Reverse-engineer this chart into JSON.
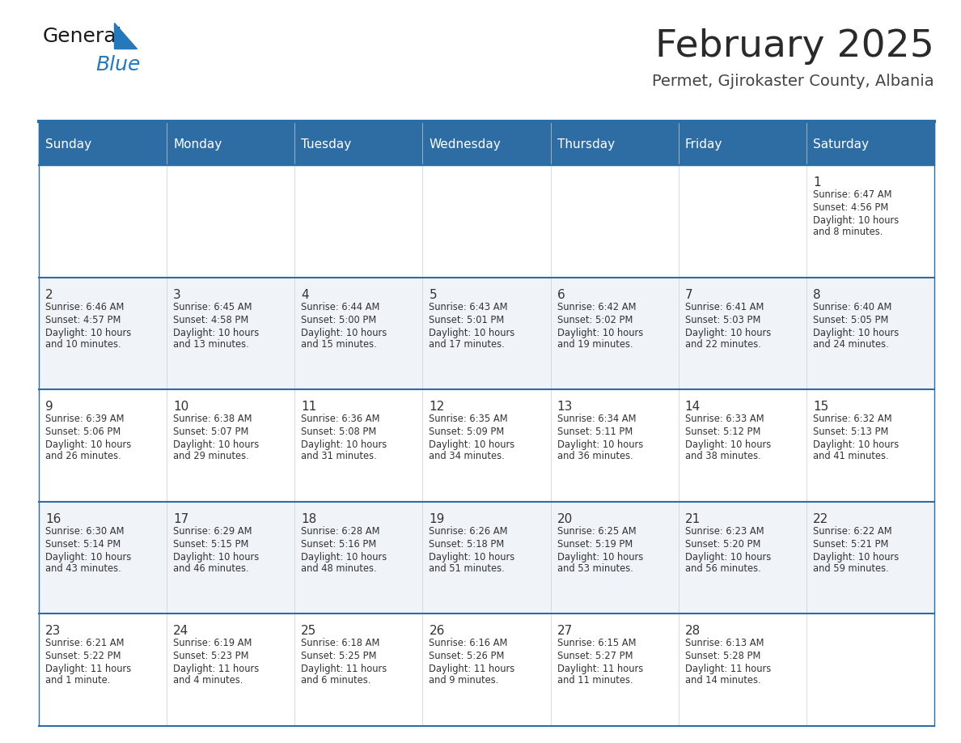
{
  "title": "February 2025",
  "subtitle": "Permet, Gjirokaster County, Albania",
  "header_bg_color": "#2E6DA4",
  "header_text_color": "#FFFFFF",
  "cell_bg_even": "#FFFFFF",
  "cell_bg_odd": "#F0F4F8",
  "border_color": "#2E6DA4",
  "text_color": "#333333",
  "day_headers": [
    "Sunday",
    "Monday",
    "Tuesday",
    "Wednesday",
    "Thursday",
    "Friday",
    "Saturday"
  ],
  "logo_color1": "#1a1a1a",
  "logo_color2": "#2479BD",
  "calendar_data": [
    [
      null,
      null,
      null,
      null,
      null,
      null,
      {
        "day": 1,
        "sunrise": "6:47 AM",
        "sunset": "4:56 PM",
        "daylight": "10 hours\nand 8 minutes."
      }
    ],
    [
      {
        "day": 2,
        "sunrise": "6:46 AM",
        "sunset": "4:57 PM",
        "daylight": "10 hours\nand 10 minutes."
      },
      {
        "day": 3,
        "sunrise": "6:45 AM",
        "sunset": "4:58 PM",
        "daylight": "10 hours\nand 13 minutes."
      },
      {
        "day": 4,
        "sunrise": "6:44 AM",
        "sunset": "5:00 PM",
        "daylight": "10 hours\nand 15 minutes."
      },
      {
        "day": 5,
        "sunrise": "6:43 AM",
        "sunset": "5:01 PM",
        "daylight": "10 hours\nand 17 minutes."
      },
      {
        "day": 6,
        "sunrise": "6:42 AM",
        "sunset": "5:02 PM",
        "daylight": "10 hours\nand 19 minutes."
      },
      {
        "day": 7,
        "sunrise": "6:41 AM",
        "sunset": "5:03 PM",
        "daylight": "10 hours\nand 22 minutes."
      },
      {
        "day": 8,
        "sunrise": "6:40 AM",
        "sunset": "5:05 PM",
        "daylight": "10 hours\nand 24 minutes."
      }
    ],
    [
      {
        "day": 9,
        "sunrise": "6:39 AM",
        "sunset": "5:06 PM",
        "daylight": "10 hours\nand 26 minutes."
      },
      {
        "day": 10,
        "sunrise": "6:38 AM",
        "sunset": "5:07 PM",
        "daylight": "10 hours\nand 29 minutes."
      },
      {
        "day": 11,
        "sunrise": "6:36 AM",
        "sunset": "5:08 PM",
        "daylight": "10 hours\nand 31 minutes."
      },
      {
        "day": 12,
        "sunrise": "6:35 AM",
        "sunset": "5:09 PM",
        "daylight": "10 hours\nand 34 minutes."
      },
      {
        "day": 13,
        "sunrise": "6:34 AM",
        "sunset": "5:11 PM",
        "daylight": "10 hours\nand 36 minutes."
      },
      {
        "day": 14,
        "sunrise": "6:33 AM",
        "sunset": "5:12 PM",
        "daylight": "10 hours\nand 38 minutes."
      },
      {
        "day": 15,
        "sunrise": "6:32 AM",
        "sunset": "5:13 PM",
        "daylight": "10 hours\nand 41 minutes."
      }
    ],
    [
      {
        "day": 16,
        "sunrise": "6:30 AM",
        "sunset": "5:14 PM",
        "daylight": "10 hours\nand 43 minutes."
      },
      {
        "day": 17,
        "sunrise": "6:29 AM",
        "sunset": "5:15 PM",
        "daylight": "10 hours\nand 46 minutes."
      },
      {
        "day": 18,
        "sunrise": "6:28 AM",
        "sunset": "5:16 PM",
        "daylight": "10 hours\nand 48 minutes."
      },
      {
        "day": 19,
        "sunrise": "6:26 AM",
        "sunset": "5:18 PM",
        "daylight": "10 hours\nand 51 minutes."
      },
      {
        "day": 20,
        "sunrise": "6:25 AM",
        "sunset": "5:19 PM",
        "daylight": "10 hours\nand 53 minutes."
      },
      {
        "day": 21,
        "sunrise": "6:23 AM",
        "sunset": "5:20 PM",
        "daylight": "10 hours\nand 56 minutes."
      },
      {
        "day": 22,
        "sunrise": "6:22 AM",
        "sunset": "5:21 PM",
        "daylight": "10 hours\nand 59 minutes."
      }
    ],
    [
      {
        "day": 23,
        "sunrise": "6:21 AM",
        "sunset": "5:22 PM",
        "daylight": "11 hours\nand 1 minute."
      },
      {
        "day": 24,
        "sunrise": "6:19 AM",
        "sunset": "5:23 PM",
        "daylight": "11 hours\nand 4 minutes."
      },
      {
        "day": 25,
        "sunrise": "6:18 AM",
        "sunset": "5:25 PM",
        "daylight": "11 hours\nand 6 minutes."
      },
      {
        "day": 26,
        "sunrise": "6:16 AM",
        "sunset": "5:26 PM",
        "daylight": "11 hours\nand 9 minutes."
      },
      {
        "day": 27,
        "sunrise": "6:15 AM",
        "sunset": "5:27 PM",
        "daylight": "11 hours\nand 11 minutes."
      },
      {
        "day": 28,
        "sunrise": "6:13 AM",
        "sunset": "5:28 PM",
        "daylight": "11 hours\nand 14 minutes."
      },
      null
    ]
  ]
}
